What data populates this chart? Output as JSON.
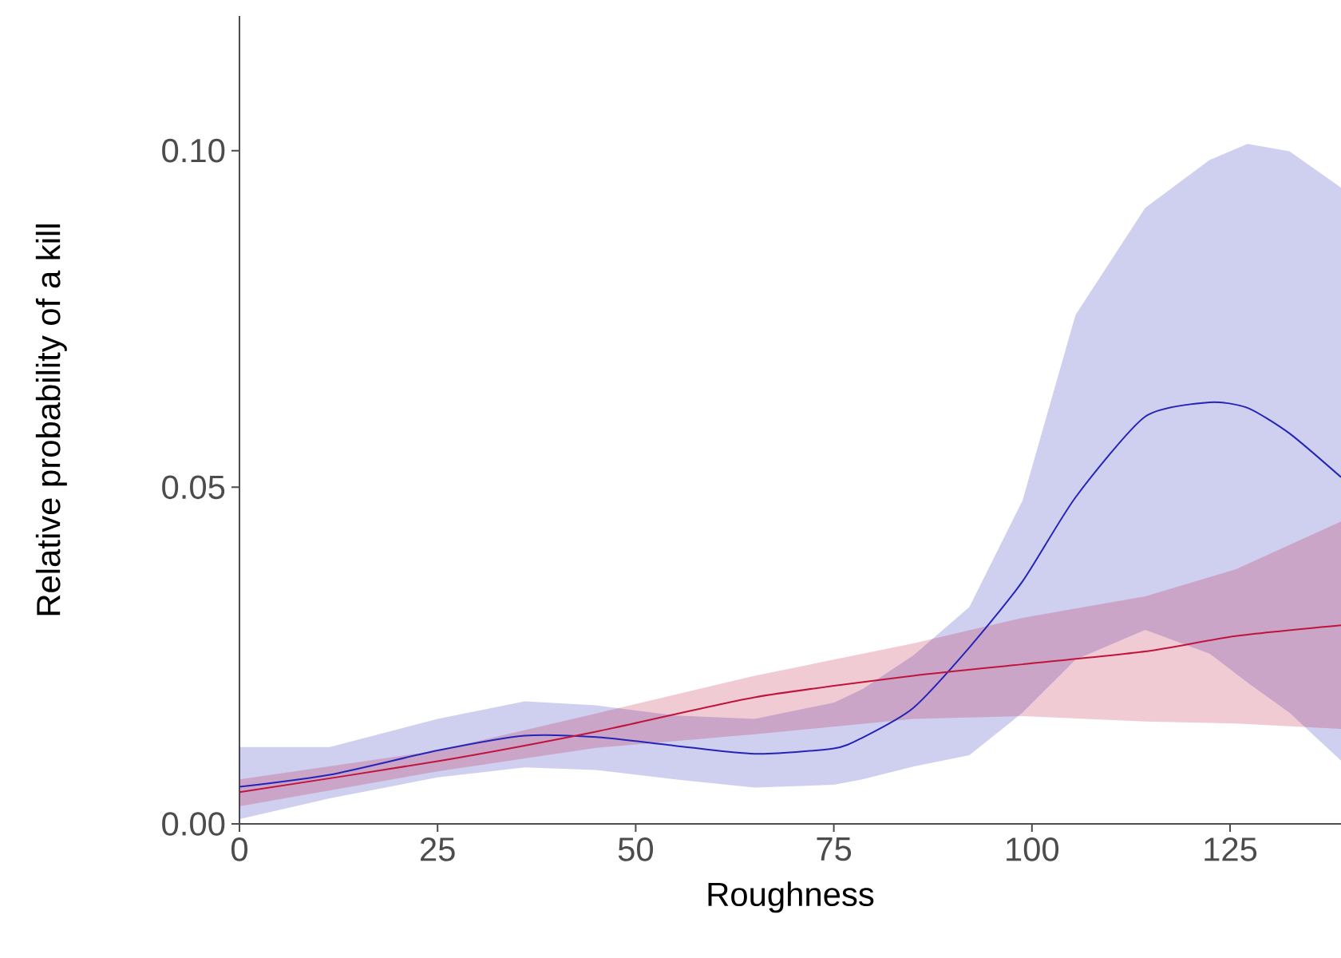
{
  "chart_data": {
    "type": "line",
    "xlabel": "Roughness",
    "ylabel": "Relative probability of a kill",
    "xlim": [
      0,
      139
    ],
    "ylim": [
      0,
      0.12
    ],
    "xticks": [
      0,
      25,
      50,
      75,
      100,
      125
    ],
    "yticks": [
      {
        "value": 0,
        "label": "0.00"
      },
      {
        "value": 0.05,
        "label": "0.05"
      },
      {
        "value": 0.1,
        "label": "0.10"
      }
    ],
    "grid": false,
    "series": [
      {
        "color": "#2424b8",
        "x": [
          0,
          11.4,
          25,
          36,
          45,
          55,
          65,
          75,
          78.6,
          85,
          92.1,
          98.8,
          105.5,
          114.3,
          122.4,
          127.2,
          132.5,
          139
        ],
        "values": [
          0.0055,
          0.0073,
          0.0109,
          0.0131,
          0.0129,
          0.0116,
          0.0104,
          0.0112,
          0.0128,
          0.0172,
          0.0262,
          0.036,
          0.0485,
          0.0605,
          0.0626,
          0.0618,
          0.058,
          0.0515
        ],
        "lower": [
          0.0007,
          0.0038,
          0.0069,
          0.0084,
          0.008,
          0.0066,
          0.0054,
          0.0058,
          0.0066,
          0.0085,
          0.0102,
          0.0165,
          0.0244,
          0.0288,
          0.0253,
          0.021,
          0.0165,
          0.0094
        ],
        "upper": [
          0.0114,
          0.0114,
          0.0156,
          0.0182,
          0.0176,
          0.0161,
          0.0156,
          0.018,
          0.02,
          0.025,
          0.0322,
          0.048,
          0.0756,
          0.0915,
          0.0986,
          0.101,
          0.0999,
          0.0945
        ]
      },
      {
        "color": "#c0143c",
        "x": [
          0,
          25,
          45,
          65,
          85,
          98.8,
          114.3,
          125.7,
          139
        ],
        "values": [
          0.0047,
          0.0093,
          0.0137,
          0.0188,
          0.022,
          0.0237,
          0.0256,
          0.0279,
          0.0295
        ],
        "lower": [
          0.0026,
          0.0078,
          0.0113,
          0.0133,
          0.0156,
          0.016,
          0.0152,
          0.0149,
          0.0141
        ],
        "upper": [
          0.0066,
          0.0109,
          0.0164,
          0.022,
          0.0268,
          0.0306,
          0.0338,
          0.0378,
          0.0449
        ]
      }
    ]
  }
}
